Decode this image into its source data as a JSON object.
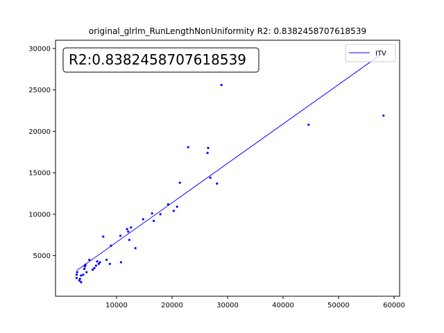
{
  "chart_data": {
    "type": "scatter",
    "title": "original_glrlm_RunLengthNonUniformity R2: 0.8382458707618539",
    "annotation": "R2:0.8382458707618539",
    "xlim": [
      -1000,
      61000
    ],
    "ylim": [
      100,
      31000
    ],
    "x_ticks": [
      10000,
      20000,
      30000,
      40000,
      50000,
      60000
    ],
    "x_tick_labels": [
      "10000",
      "20000",
      "30000",
      "40000",
      "50000",
      "60000"
    ],
    "y_ticks": [
      5000,
      10000,
      15000,
      20000,
      25000,
      30000
    ],
    "y_tick_labels": [
      "5000",
      "10000",
      "15000",
      "20000",
      "25000",
      "30000"
    ],
    "grid": false,
    "legend": {
      "position": "top-right",
      "entries": [
        {
          "label": "ITV",
          "color": "#0000ff"
        }
      ]
    },
    "point_color": "#0000ff",
    "fit_line": {
      "name": "ITV",
      "color": "#0000ff",
      "x": [
        2800,
        58300
      ],
      "y": [
        3200,
        29600
      ]
    },
    "points": [
      {
        "x": 2800,
        "y": 2300
      },
      {
        "x": 2800,
        "y": 2700
      },
      {
        "x": 2900,
        "y": 3000
      },
      {
        "x": 3300,
        "y": 2000
      },
      {
        "x": 3400,
        "y": 2200
      },
      {
        "x": 3600,
        "y": 1800
      },
      {
        "x": 3600,
        "y": 2600
      },
      {
        "x": 4000,
        "y": 2700
      },
      {
        "x": 4200,
        "y": 3400
      },
      {
        "x": 4300,
        "y": 3700
      },
      {
        "x": 4400,
        "y": 3900
      },
      {
        "x": 4600,
        "y": 3000
      },
      {
        "x": 5100,
        "y": 4500
      },
      {
        "x": 5700,
        "y": 3300
      },
      {
        "x": 6000,
        "y": 3500
      },
      {
        "x": 6300,
        "y": 3800
      },
      {
        "x": 6500,
        "y": 4300
      },
      {
        "x": 6800,
        "y": 4000
      },
      {
        "x": 7000,
        "y": 4200
      },
      {
        "x": 7600,
        "y": 7300
      },
      {
        "x": 8200,
        "y": 4500
      },
      {
        "x": 8800,
        "y": 4000
      },
      {
        "x": 9000,
        "y": 6200
      },
      {
        "x": 10700,
        "y": 7400
      },
      {
        "x": 10800,
        "y": 4200
      },
      {
        "x": 11900,
        "y": 8200
      },
      {
        "x": 12100,
        "y": 7900
      },
      {
        "x": 12300,
        "y": 6900
      },
      {
        "x": 12600,
        "y": 8400
      },
      {
        "x": 13400,
        "y": 5900
      },
      {
        "x": 14800,
        "y": 9400
      },
      {
        "x": 16400,
        "y": 10100
      },
      {
        "x": 16700,
        "y": 9200
      },
      {
        "x": 17900,
        "y": 10000
      },
      {
        "x": 19300,
        "y": 11200
      },
      {
        "x": 20300,
        "y": 10400
      },
      {
        "x": 20900,
        "y": 10900
      },
      {
        "x": 21400,
        "y": 13800
      },
      {
        "x": 22900,
        "y": 18100
      },
      {
        "x": 26400,
        "y": 17400
      },
      {
        "x": 26500,
        "y": 18000
      },
      {
        "x": 26900,
        "y": 14400
      },
      {
        "x": 28100,
        "y": 13700
      },
      {
        "x": 28900,
        "y": 25600
      },
      {
        "x": 44600,
        "y": 20800
      },
      {
        "x": 58100,
        "y": 21900
      }
    ]
  }
}
